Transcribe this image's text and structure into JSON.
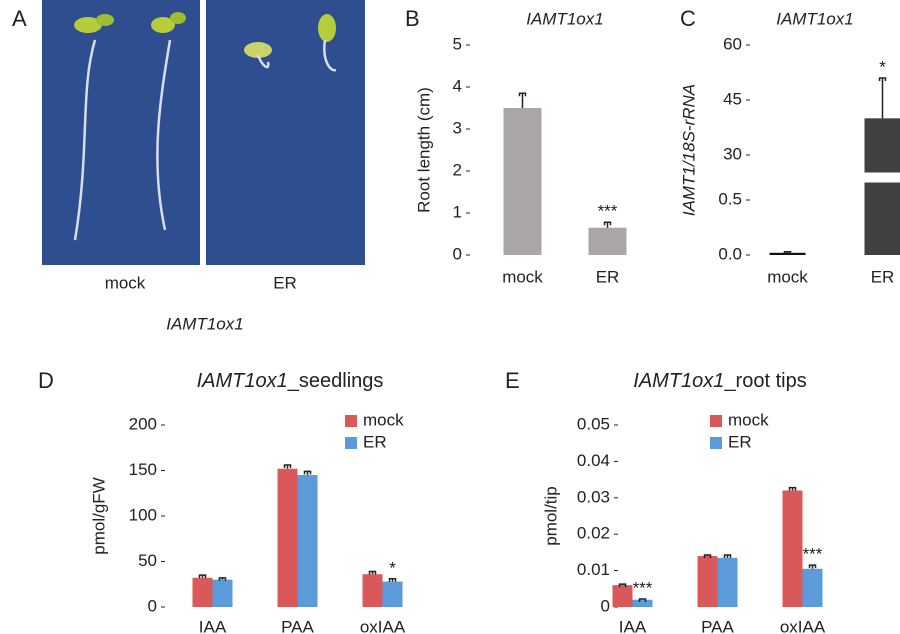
{
  "panel_a": {
    "letter": "A",
    "conditions": [
      "mock",
      "ER"
    ],
    "genotype": "IAMT1ox1"
  },
  "chart_data": [
    {
      "type": "bar",
      "panel": "B",
      "title": "IAMT1ox1",
      "y_label": "Root length (cm)",
      "categories": [
        "mock",
        "ER"
      ],
      "ylim": [
        0,
        5
      ],
      "yticks": [
        0,
        1,
        2,
        3,
        4,
        5
      ],
      "series": [
        {
          "name": null,
          "color": "#aaa6a6",
          "values": [
            3.5,
            0.65
          ],
          "errors": [
            0.35,
            0.13
          ],
          "annotations": [
            null,
            "***"
          ]
        }
      ]
    },
    {
      "type": "bar",
      "panel": "C",
      "title": "IAMT1ox1",
      "y_label": "IAMT1/18S-rRNA",
      "categories": [
        "mock",
        "ER"
      ],
      "ylim": [
        0,
        60
      ],
      "ybreak": [
        0.5,
        30
      ],
      "yticks": [
        {
          "value": 0,
          "label": "0.0"
        },
        0.5,
        30,
        45,
        60
      ],
      "series": [
        {
          "name": null,
          "colors": [
            "#111111",
            "#404040"
          ],
          "values": [
            0.02,
            40
          ],
          "errors": [
            0.01,
            11
          ],
          "annotations": [
            null,
            "*"
          ]
        }
      ]
    },
    {
      "type": "grouped_bar",
      "panel": "D",
      "title": [
        "IAMT1ox1",
        "_seedlings"
      ],
      "y_label": "pmol/gFW",
      "categories": [
        "IAA",
        "PAA",
        "oxIAA"
      ],
      "ylim": [
        0,
        200
      ],
      "yticks": [
        0,
        50,
        100,
        150,
        200
      ],
      "legend": "top-right",
      "series": [
        {
          "name": "mock",
          "color": "#d9595a",
          "values": [
            32,
            152,
            36
          ],
          "errors": [
            3,
            4,
            3
          ],
          "annotations": [
            null,
            null,
            null
          ]
        },
        {
          "name": "ER",
          "color": "#5b9bd9",
          "values": [
            30,
            145,
            28
          ],
          "errors": [
            2,
            4,
            3
          ],
          "annotations": [
            null,
            null,
            "*"
          ]
        }
      ]
    },
    {
      "type": "grouped_bar",
      "panel": "E",
      "title": [
        "IAMT1ox1",
        "_root tips"
      ],
      "y_label": "pmol/tip",
      "categories": [
        "IAA",
        "PAA",
        "oxIAA"
      ],
      "ylim": [
        0,
        0.05
      ],
      "yticks": [
        0,
        0.01,
        0.02,
        0.03,
        0.04,
        0.05
      ],
      "legend": "top-right",
      "series": [
        {
          "name": "mock",
          "color": "#d9595a",
          "values": [
            0.006,
            0.014,
            0.032
          ],
          "errors": [
            0.0003,
            0.0003,
            0.0008
          ],
          "annotations": [
            null,
            null,
            null
          ]
        },
        {
          "name": "ER",
          "color": "#5b9bd9",
          "values": [
            0.002,
            0.0135,
            0.0105
          ],
          "errors": [
            0.0002,
            0.0008,
            0.001
          ],
          "annotations": [
            "***",
            null,
            "***"
          ]
        }
      ]
    }
  ]
}
